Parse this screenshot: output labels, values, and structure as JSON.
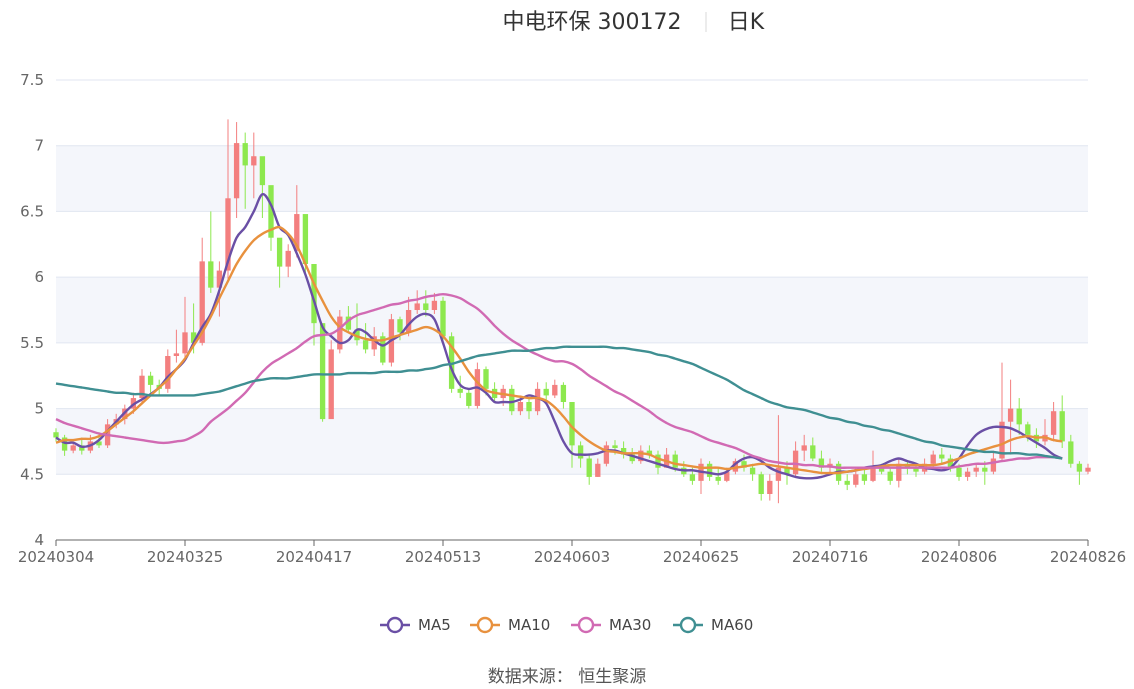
{
  "chart_data": {
    "type": "candlestick",
    "title": "中电环保 300172",
    "period": "日K",
    "yticks": [
      "4",
      "4.5",
      "5",
      "5.5",
      "6",
      "6.5",
      "7",
      "7.5"
    ],
    "ylim": [
      4,
      7.5
    ],
    "xticks": [
      "20240304",
      "20240325",
      "20240417",
      "20240513",
      "20240603",
      "20240625",
      "20240716",
      "20240806",
      "20240826"
    ],
    "up_color": "#f37f7f",
    "down_color": "#8de84e",
    "candles": [
      [
        4.82,
        4.78,
        4.85,
        4.75
      ],
      [
        4.78,
        4.68,
        4.8,
        4.64
      ],
      [
        4.68,
        4.72,
        4.75,
        4.66
      ],
      [
        4.72,
        4.68,
        4.78,
        4.65
      ],
      [
        4.68,
        4.75,
        4.8,
        4.66
      ],
      [
        4.75,
        4.72,
        4.82,
        4.7
      ],
      [
        4.72,
        4.88,
        4.92,
        4.7
      ],
      [
        4.88,
        4.92,
        4.96,
        4.85
      ],
      [
        4.92,
        5.0,
        5.03,
        4.88
      ],
      [
        5.0,
        5.08,
        5.12,
        4.96
      ],
      [
        5.08,
        5.25,
        5.3,
        5.05
      ],
      [
        5.25,
        5.18,
        5.28,
        5.12
      ],
      [
        5.18,
        5.15,
        5.22,
        5.1
      ],
      [
        5.15,
        5.4,
        5.45,
        5.12
      ],
      [
        5.4,
        5.42,
        5.6,
        5.35
      ],
      [
        5.42,
        5.58,
        5.85,
        5.38
      ],
      [
        5.58,
        5.5,
        5.8,
        5.42
      ],
      [
        5.5,
        6.12,
        6.3,
        5.48
      ],
      [
        6.12,
        5.92,
        6.5,
        5.88
      ],
      [
        5.92,
        6.05,
        6.12,
        5.7
      ],
      [
        6.05,
        6.6,
        7.2,
        5.98
      ],
      [
        6.6,
        7.02,
        7.18,
        6.45
      ],
      [
        7.02,
        6.85,
        7.1,
        6.52
      ],
      [
        6.85,
        6.92,
        7.1,
        6.6
      ],
      [
        6.92,
        6.7,
        6.78,
        6.45
      ],
      [
        6.7,
        6.3,
        6.48,
        6.2
      ],
      [
        6.3,
        6.08,
        6.25,
        5.92
      ],
      [
        6.08,
        6.2,
        6.25,
        6.0
      ],
      [
        6.2,
        6.48,
        6.7,
        6.15
      ],
      [
        6.48,
        6.1,
        6.4,
        6.02
      ],
      [
        6.1,
        5.65,
        6.05,
        5.48
      ],
      [
        5.65,
        4.92,
        5.62,
        4.9
      ],
      [
        4.92,
        5.45,
        5.52,
        4.95
      ],
      [
        5.45,
        5.7,
        5.75,
        5.42
      ],
      [
        5.7,
        5.6,
        5.78,
        5.58
      ],
      [
        5.6,
        5.52,
        5.8,
        5.48
      ],
      [
        5.52,
        5.45,
        5.65,
        5.42
      ],
      [
        5.45,
        5.55,
        5.62,
        5.4
      ],
      [
        5.55,
        5.35,
        5.58,
        5.33
      ],
      [
        5.35,
        5.68,
        5.72,
        5.32
      ],
      [
        5.68,
        5.58,
        5.7,
        5.52
      ],
      [
        5.58,
        5.75,
        5.85,
        5.55
      ],
      [
        5.75,
        5.8,
        5.9,
        5.72
      ],
      [
        5.8,
        5.75,
        5.9,
        5.7
      ],
      [
        5.75,
        5.82,
        5.88,
        5.72
      ],
      [
        5.82,
        5.55,
        5.85,
        5.52
      ],
      [
        5.55,
        5.15,
        5.58,
        5.12
      ],
      [
        5.15,
        5.12,
        5.25,
        5.08
      ],
      [
        5.12,
        5.02,
        5.15,
        5.0
      ],
      [
        5.02,
        5.3,
        5.35,
        5.0
      ],
      [
        5.3,
        5.15,
        5.32,
        5.1
      ],
      [
        5.15,
        5.08,
        5.2,
        5.05
      ],
      [
        5.08,
        5.15,
        5.18,
        5.02
      ],
      [
        5.15,
        4.98,
        5.18,
        4.95
      ],
      [
        4.98,
        5.05,
        5.1,
        4.95
      ],
      [
        5.05,
        4.98,
        5.08,
        4.92
      ],
      [
        4.98,
        5.15,
        5.2,
        4.95
      ],
      [
        5.15,
        5.1,
        5.2,
        5.05
      ],
      [
        5.1,
        5.18,
        5.22,
        5.08
      ],
      [
        5.18,
        5.05,
        5.2,
        5.0
      ],
      [
        5.05,
        4.72,
        5.05,
        4.55
      ],
      [
        4.72,
        4.62,
        4.75,
        4.55
      ],
      [
        4.62,
        4.48,
        4.65,
        4.42
      ],
      [
        4.48,
        4.58,
        4.62,
        4.48
      ],
      [
        4.58,
        4.72,
        4.75,
        4.56
      ],
      [
        4.72,
        4.7,
        4.76,
        4.65
      ],
      [
        4.7,
        4.65,
        4.75,
        4.62
      ],
      [
        4.65,
        4.6,
        4.7,
        4.58
      ],
      [
        4.6,
        4.68,
        4.72,
        4.58
      ],
      [
        4.68,
        4.65,
        4.72,
        4.62
      ],
      [
        4.65,
        4.55,
        4.68,
        4.5
      ],
      [
        4.55,
        4.65,
        4.7,
        4.55
      ],
      [
        4.65,
        4.55,
        4.68,
        4.52
      ],
      [
        4.55,
        4.5,
        4.6,
        4.48
      ],
      [
        4.5,
        4.45,
        4.55,
        4.42
      ],
      [
        4.45,
        4.58,
        4.62,
        4.35
      ],
      [
        4.58,
        4.48,
        4.6,
        4.45
      ],
      [
        4.48,
        4.45,
        4.55,
        4.42
      ],
      [
        4.45,
        4.52,
        4.55,
        4.44
      ],
      [
        4.52,
        4.6,
        4.62,
        4.5
      ],
      [
        4.6,
        4.55,
        4.65,
        4.52
      ],
      [
        4.55,
        4.5,
        4.58,
        4.45
      ],
      [
        4.5,
        4.35,
        4.52,
        4.3
      ],
      [
        4.35,
        4.45,
        4.5,
        4.3
      ],
      [
        4.45,
        4.55,
        4.95,
        4.28
      ],
      [
        4.55,
        4.5,
        4.6,
        4.42
      ],
      [
        4.5,
        4.68,
        4.75,
        4.48
      ],
      [
        4.68,
        4.72,
        4.8,
        4.6
      ],
      [
        4.72,
        4.62,
        4.78,
        4.6
      ],
      [
        4.62,
        4.55,
        4.68,
        4.52
      ],
      [
        4.55,
        4.58,
        4.62,
        4.5
      ],
      [
        4.58,
        4.45,
        4.6,
        4.42
      ],
      [
        4.45,
        4.42,
        4.5,
        4.38
      ],
      [
        4.42,
        4.5,
        4.55,
        4.4
      ],
      [
        4.5,
        4.45,
        4.55,
        4.42
      ],
      [
        4.45,
        4.55,
        4.68,
        4.44
      ],
      [
        4.55,
        4.52,
        4.58,
        4.5
      ],
      [
        4.52,
        4.45,
        4.55,
        4.42
      ],
      [
        4.45,
        4.58,
        4.62,
        4.4
      ],
      [
        4.58,
        4.55,
        4.6,
        4.5
      ],
      [
        4.55,
        4.52,
        4.58,
        4.48
      ],
      [
        4.52,
        4.58,
        4.62,
        4.5
      ],
      [
        4.58,
        4.65,
        4.68,
        4.55
      ],
      [
        4.65,
        4.62,
        4.7,
        4.58
      ],
      [
        4.62,
        4.55,
        4.65,
        4.52
      ],
      [
        4.55,
        4.48,
        4.58,
        4.45
      ],
      [
        4.48,
        4.52,
        4.55,
        4.45
      ],
      [
        4.52,
        4.55,
        4.58,
        4.48
      ],
      [
        4.55,
        4.52,
        4.6,
        4.42
      ],
      [
        4.52,
        4.62,
        4.68,
        4.5
      ],
      [
        4.62,
        4.9,
        5.35,
        4.6
      ],
      [
        4.9,
        5.0,
        5.22,
        4.65
      ],
      [
        5.0,
        4.88,
        5.08,
        4.8
      ],
      [
        4.88,
        4.8,
        4.9,
        4.75
      ],
      [
        4.8,
        4.75,
        4.85,
        4.7
      ],
      [
        4.75,
        4.8,
        4.92,
        4.72
      ],
      [
        4.8,
        4.98,
        5.05,
        4.75
      ],
      [
        4.98,
        4.75,
        5.1,
        4.7
      ],
      [
        4.75,
        4.58,
        4.8,
        4.55
      ],
      [
        4.58,
        4.52,
        4.6,
        4.42
      ],
      [
        4.52,
        4.55,
        4.58,
        4.5
      ]
    ],
    "series": [
      {
        "name": "MA5",
        "color": "#6a4fa5",
        "values": [
          4.78,
          4.74,
          4.74,
          4.71,
          4.72,
          4.76,
          4.83,
          4.9,
          4.97,
          5.03,
          5.07,
          5.11,
          5.16,
          5.24,
          5.3,
          5.37,
          5.5,
          5.62,
          5.72,
          5.9,
          6.12,
          6.3,
          6.38,
          6.5,
          6.63,
          6.55,
          6.38,
          6.32,
          6.18,
          6.02,
          5.82,
          5.62,
          5.55,
          5.5,
          5.52,
          5.6,
          5.58,
          5.52,
          5.48,
          5.52,
          5.56,
          5.64,
          5.7,
          5.72,
          5.68,
          5.5,
          5.3,
          5.18,
          5.15,
          5.16,
          5.12,
          5.05,
          5.05,
          5.05,
          5.07,
          5.1,
          5.08,
          5.04,
          4.9,
          4.75,
          4.66,
          4.65,
          4.65,
          4.66,
          4.68,
          4.68,
          4.66,
          4.64,
          4.62,
          4.6,
          4.58,
          4.56,
          4.54,
          4.53,
          4.53,
          4.52,
          4.51,
          4.5,
          4.52,
          4.58,
          4.62,
          4.63,
          4.6,
          4.55,
          4.52,
          4.5,
          4.48,
          4.47,
          4.47,
          4.48,
          4.5,
          4.52,
          4.52,
          4.53,
          4.55,
          4.56,
          4.57,
          4.6,
          4.62,
          4.6,
          4.58,
          4.55,
          4.54,
          4.53,
          4.55,
          4.62,
          4.72,
          4.8,
          4.84,
          4.86,
          4.86,
          4.85,
          4.82,
          4.78,
          4.74,
          4.7,
          4.65,
          4.62
        ]
      },
      {
        "name": "MA10",
        "color": "#e8913e",
        "values": [
          4.74,
          4.76,
          4.76,
          4.77,
          4.77,
          4.79,
          4.83,
          4.88,
          4.93,
          4.98,
          5.04,
          5.1,
          5.16,
          5.22,
          5.3,
          5.38,
          5.48,
          5.58,
          5.7,
          5.84,
          5.97,
          6.1,
          6.2,
          6.28,
          6.33,
          6.36,
          6.38,
          6.33,
          6.24,
          6.1,
          5.95,
          5.82,
          5.7,
          5.62,
          5.58,
          5.55,
          5.53,
          5.52,
          5.52,
          5.54,
          5.56,
          5.58,
          5.6,
          5.62,
          5.6,
          5.55,
          5.47,
          5.38,
          5.28,
          5.2,
          5.14,
          5.12,
          5.11,
          5.1,
          5.09,
          5.08,
          5.08,
          5.06,
          5.01,
          4.94,
          4.86,
          4.8,
          4.75,
          4.71,
          4.68,
          4.67,
          4.66,
          4.66,
          4.66,
          4.65,
          4.62,
          4.6,
          4.58,
          4.57,
          4.56,
          4.55,
          4.55,
          4.55,
          4.54,
          4.55,
          4.56,
          4.57,
          4.58,
          4.57,
          4.56,
          4.55,
          4.54,
          4.53,
          4.52,
          4.51,
          4.51,
          4.51,
          4.52,
          4.53,
          4.54,
          4.55,
          4.56,
          4.57,
          4.57,
          4.57,
          4.57,
          4.57,
          4.57,
          4.58,
          4.6,
          4.62,
          4.65,
          4.67,
          4.69,
          4.71,
          4.73,
          4.76,
          4.78,
          4.79,
          4.78,
          4.78,
          4.76,
          4.75
        ]
      },
      {
        "name": "MA30",
        "color": "#d16ab3",
        "values": [
          4.92,
          4.89,
          4.87,
          4.85,
          4.83,
          4.81,
          4.8,
          4.79,
          4.78,
          4.77,
          4.76,
          4.75,
          4.74,
          4.74,
          4.75,
          4.76,
          4.79,
          4.83,
          4.9,
          4.95,
          5.0,
          5.06,
          5.12,
          5.2,
          5.28,
          5.34,
          5.38,
          5.42,
          5.46,
          5.51,
          5.55,
          5.56,
          5.57,
          5.61,
          5.67,
          5.71,
          5.73,
          5.75,
          5.77,
          5.79,
          5.8,
          5.82,
          5.83,
          5.85,
          5.86,
          5.87,
          5.86,
          5.84,
          5.8,
          5.76,
          5.7,
          5.63,
          5.57,
          5.52,
          5.48,
          5.44,
          5.41,
          5.38,
          5.36,
          5.36,
          5.34,
          5.3,
          5.25,
          5.21,
          5.17,
          5.13,
          5.1,
          5.06,
          5.02,
          4.98,
          4.93,
          4.89,
          4.86,
          4.84,
          4.82,
          4.79,
          4.76,
          4.74,
          4.72,
          4.7,
          4.67,
          4.64,
          4.62,
          4.6,
          4.59,
          4.58,
          4.58,
          4.57,
          4.57,
          4.56,
          4.56,
          4.55,
          4.55,
          4.55,
          4.55,
          4.55,
          4.55,
          4.55,
          4.55,
          4.55,
          4.55,
          4.55,
          4.55,
          4.55,
          4.55,
          4.56,
          4.57,
          4.58,
          4.58,
          4.59,
          4.6,
          4.61,
          4.62,
          4.62,
          4.63,
          4.63,
          4.63,
          4.62
        ]
      },
      {
        "name": "MA60",
        "color": "#3f8f92",
        "values": [
          5.19,
          5.18,
          5.17,
          5.16,
          5.15,
          5.14,
          5.13,
          5.12,
          5.12,
          5.11,
          5.11,
          5.1,
          5.1,
          5.1,
          5.1,
          5.1,
          5.1,
          5.11,
          5.12,
          5.13,
          5.15,
          5.17,
          5.19,
          5.21,
          5.22,
          5.23,
          5.23,
          5.23,
          5.24,
          5.25,
          5.26,
          5.26,
          5.26,
          5.26,
          5.27,
          5.27,
          5.27,
          5.27,
          5.28,
          5.28,
          5.28,
          5.29,
          5.29,
          5.3,
          5.31,
          5.33,
          5.34,
          5.36,
          5.38,
          5.4,
          5.41,
          5.42,
          5.43,
          5.44,
          5.44,
          5.44,
          5.45,
          5.46,
          5.46,
          5.47,
          5.47,
          5.47,
          5.47,
          5.47,
          5.47,
          5.46,
          5.46,
          5.45,
          5.44,
          5.43,
          5.41,
          5.4,
          5.38,
          5.36,
          5.34,
          5.31,
          5.28,
          5.25,
          5.22,
          5.18,
          5.14,
          5.11,
          5.08,
          5.05,
          5.03,
          5.01,
          5.0,
          4.99,
          4.97,
          4.95,
          4.93,
          4.92,
          4.9,
          4.89,
          4.87,
          4.86,
          4.84,
          4.83,
          4.81,
          4.79,
          4.77,
          4.75,
          4.74,
          4.72,
          4.71,
          4.7,
          4.69,
          4.68,
          4.67,
          4.67,
          4.66,
          4.66,
          4.66,
          4.65,
          4.65,
          4.64,
          4.63,
          4.62
        ]
      }
    ]
  },
  "legend": [
    {
      "label": "MA5",
      "color": "#6a4fa5"
    },
    {
      "label": "MA10",
      "color": "#e8913e"
    },
    {
      "label": "MA30",
      "color": "#d16ab3"
    },
    {
      "label": "MA60",
      "color": "#3f8f92"
    }
  ],
  "source_label": "数据来源：  恒生聚源"
}
